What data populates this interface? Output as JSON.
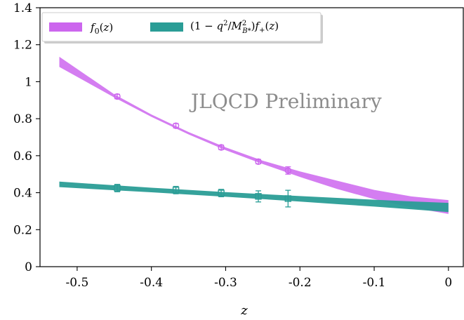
{
  "chart_data": {
    "type": "line",
    "title": "",
    "xlabel": "z",
    "ylabel": "",
    "xlim": [
      -0.55,
      0.02
    ],
    "ylim": [
      0,
      1.4
    ],
    "grid": false,
    "legend_position": "top-left",
    "x_ticks": [
      -0.5,
      -0.4,
      -0.3,
      -0.2,
      -0.1,
      0
    ],
    "x_tick_labels": [
      "-0.5",
      "-0.4",
      "-0.3",
      "-0.2",
      "-0.1",
      "0"
    ],
    "y_ticks": [
      0,
      0.2,
      0.4,
      0.6,
      0.8,
      1.0,
      1.2,
      1.4
    ],
    "y_tick_labels": [
      "0",
      "0.2",
      "0.4",
      "0.6",
      "0.8",
      "1",
      "1.2",
      "1.4"
    ],
    "annotation": "JLQCD Preliminary",
    "series": [
      {
        "name": "f₀(z)",
        "color": "#cc66ee",
        "band": {
          "x": [
            -0.524,
            -0.45,
            -0.4,
            -0.35,
            -0.3,
            -0.25,
            -0.2,
            -0.15,
            -0.1,
            -0.05,
            0.0
          ],
          "lower": [
            1.08,
            0.915,
            0.81,
            0.715,
            0.63,
            0.555,
            0.485,
            0.42,
            0.365,
            0.32,
            0.285
          ],
          "upper": [
            1.135,
            0.932,
            0.823,
            0.728,
            0.645,
            0.573,
            0.515,
            0.465,
            0.415,
            0.38,
            0.36
          ]
        },
        "points": [
          {
            "x": -0.446,
            "y": 0.92,
            "err": 0.012
          },
          {
            "x": -0.367,
            "y": 0.762,
            "err": 0.012
          },
          {
            "x": -0.306,
            "y": 0.645,
            "err": 0.012
          },
          {
            "x": -0.256,
            "y": 0.568,
            "err": 0.012
          },
          {
            "x": -0.216,
            "y": 0.52,
            "err": 0.02
          }
        ]
      },
      {
        "name": "(1 − q²/M²_B*) f₊(z)",
        "color": "#2a9d96",
        "band": {
          "x": [
            -0.524,
            -0.45,
            -0.4,
            -0.35,
            -0.3,
            -0.25,
            -0.2,
            -0.15,
            -0.1,
            -0.05,
            0.0
          ],
          "lower": [
            0.43,
            0.413,
            0.402,
            0.39,
            0.378,
            0.365,
            0.352,
            0.338,
            0.325,
            0.31,
            0.295
          ],
          "upper": [
            0.46,
            0.44,
            0.427,
            0.415,
            0.403,
            0.392,
            0.382,
            0.372,
            0.362,
            0.353,
            0.345
          ]
        },
        "points": [
          {
            "x": -0.446,
            "y": 0.425,
            "err": 0.02
          },
          {
            "x": -0.367,
            "y": 0.414,
            "err": 0.02
          },
          {
            "x": -0.306,
            "y": 0.398,
            "err": 0.02
          },
          {
            "x": -0.256,
            "y": 0.38,
            "err": 0.03
          },
          {
            "x": -0.216,
            "y": 0.368,
            "err": 0.045
          }
        ]
      }
    ]
  }
}
